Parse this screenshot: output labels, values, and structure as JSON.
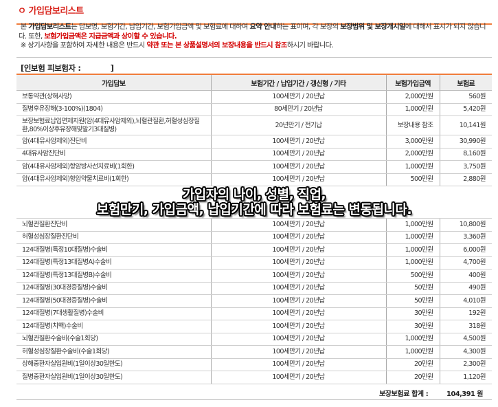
{
  "title": "ㅇ 가입담보리스트",
  "description": {
    "p1_a": "본 ",
    "p1_b": "가입담보리스트",
    "p1_c": "는 담보명, 보험기간, 납입기간, 보험가입금액 및 보험료에 대하여 ",
    "p1_d": "요약 안내",
    "p1_e": "하는 표이며, 각 보장의 ",
    "p1_f": "보장범위 및 보장개시일",
    "p1_g": "에 대해서 표시가 되지 않습니다. 또한, ",
    "p1_h": "보험가입금액은 지급금액과 상이할 수 있습니다.",
    "p2_a": "※ 상기사항을 포함하여 자세한 내용은 반드시 ",
    "p2_b": "약관 또는 본 상품설명서의 보장내용을 반드시 참조",
    "p2_c": "하시기 바랍니다."
  },
  "insured_label": "[인보험 피보험자 :            ]",
  "table": {
    "headers": [
      "가입담보",
      "보험기간 / 납입기간 / 갱신형 / 기타",
      "보험가입금액",
      "보험료"
    ],
    "rows": [
      {
        "name": "보통약관(상해사망)",
        "term": "100세만기 / 20년납",
        "amount": "2,000만원",
        "premium": "560원"
      },
      {
        "name": "질병후유장해(3-100%)(1804)",
        "term": "80세만기 / 20년납",
        "amount": "1,000만원",
        "premium": "5,420원"
      },
      {
        "name": "보장보험료납입면제지원(암(4대유사암제외),뇌혈관질환,허혈성심장질환,80%이상후유장해및말기3대질병)",
        "term": "20년만기 / 전기납",
        "amount": "보장내용 참조",
        "premium": "10,141원"
      },
      {
        "name": "암(4대유사암제외)진단비",
        "term": "100세만기 / 20년납",
        "amount": "3,000만원",
        "premium": "30,990원"
      },
      {
        "name": "4대유사암진단비",
        "term": "100세만기 / 20년납",
        "amount": "2,000만원",
        "premium": "8,160원"
      },
      {
        "name": "암(4대유사암제외)항암방사선치료비(1회한)",
        "term": "100세만기 / 20년납",
        "amount": "1,000만원",
        "premium": "3,750원"
      },
      {
        "name": "암(4대유사암제외)항암약물치료비(1회한)",
        "term": "100세만기 / 20년납",
        "amount": "500만원",
        "premium": "2,880원"
      },
      {
        "name": "뇌혈관질환진단비",
        "term": "100세만기 / 20년납",
        "amount": "1,000만원",
        "premium": "10,800원"
      },
      {
        "name": "허혈성심장질환진단비",
        "term": "100세만기 / 20년납",
        "amount": "1,000만원",
        "premium": "3,360원"
      },
      {
        "name": "124대질병(특정10대질병)수술비",
        "term": "100세만기 / 20년납",
        "amount": "1,000만원",
        "premium": "6,000원"
      },
      {
        "name": "124대질병(특정13대질병A)수술비",
        "term": "100세만기 / 20년납",
        "amount": "1,000만원",
        "premium": "4,700원"
      },
      {
        "name": "124대질병(특정13대질병B)수술비",
        "term": "100세만기 / 20년납",
        "amount": "500만원",
        "premium": "400원"
      },
      {
        "name": "124대질병(30대경증질병)수술비",
        "term": "100세만기 / 20년납",
        "amount": "50만원",
        "premium": "490원"
      },
      {
        "name": "124대질병(50대경증질병)수술비",
        "term": "100세만기 / 20년납",
        "amount": "50만원",
        "premium": "4,010원"
      },
      {
        "name": "124대질병(7대생활질병)수술비",
        "term": "100세만기 / 20년납",
        "amount": "30만원",
        "premium": "192원"
      },
      {
        "name": "124대질병(치핵)수술비",
        "term": "100세만기 / 20년납",
        "amount": "30만원",
        "premium": "318원"
      },
      {
        "name": "뇌혈관질환수술비(수술1회당)",
        "term": "100세만기 / 20년납",
        "amount": "1,000만원",
        "premium": "4,500원"
      },
      {
        "name": "허혈성심장질환수술비(수술1회당)",
        "term": "100세만기 / 20년납",
        "amount": "1,000만원",
        "premium": "4,300원"
      },
      {
        "name": "상해중환자실입원비(1일이상30일한도)",
        "term": "100세만기 / 20년납",
        "amount": "20만원",
        "premium": "2,300원"
      },
      {
        "name": "질병중환자실입원비(1일이상30일한도)",
        "term": "100세만기 / 20년납",
        "amount": "20만원",
        "premium": "1,120원"
      }
    ]
  },
  "total": {
    "label": "보장보험료 합계 :",
    "value": "104,391 원"
  },
  "overlay": {
    "line1": "가입자의 나이, 성별, 직업,",
    "line2": "보험만기, 가입금액, 납입기간에 따라 보험료는 변동됩니다."
  },
  "colors": {
    "accent": "#f07c3b",
    "title": "#d9251d",
    "warning": "#d40000"
  }
}
